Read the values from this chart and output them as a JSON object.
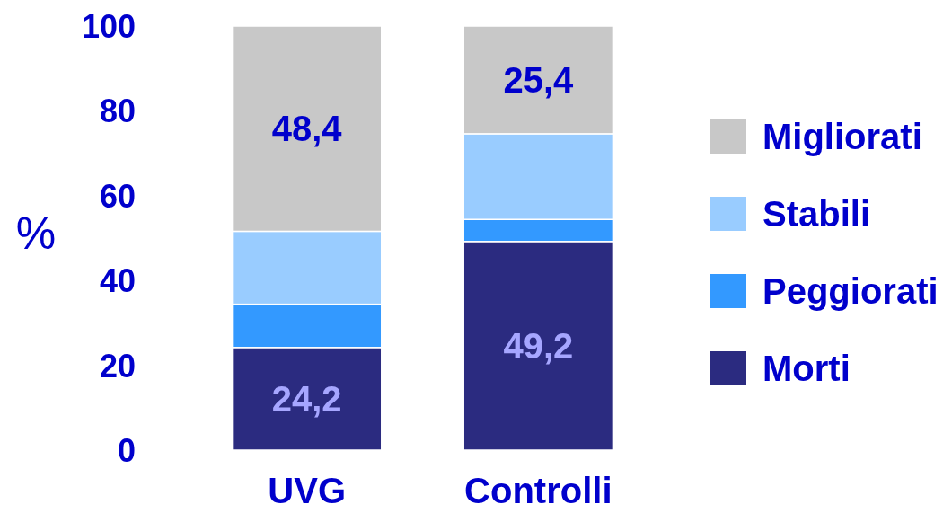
{
  "chart_data": {
    "type": "bar",
    "stacked": true,
    "ylabel": "%",
    "categories": [
      "UVG",
      "Controlli"
    ],
    "ylim": [
      0,
      100
    ],
    "yticks": [
      0,
      20,
      40,
      60,
      80,
      100
    ],
    "legend": "right",
    "series": [
      {
        "name": "Morti",
        "color": "#2b2b80",
        "values": [
          24.2,
          49.2
        ],
        "value_labels": [
          "24,2",
          "49,2"
        ]
      },
      {
        "name": "Peggiorati",
        "color": "#3399ff",
        "values": [
          10.2,
          5.2
        ]
      },
      {
        "name": "Stabili",
        "color": "#99ccff",
        "values": [
          17.2,
          20.2
        ]
      },
      {
        "name": "Migliorati",
        "color": "#c8c8c8",
        "values": [
          48.4,
          25.4
        ],
        "value_labels": [
          "48,4",
          "25,4"
        ]
      }
    ]
  }
}
